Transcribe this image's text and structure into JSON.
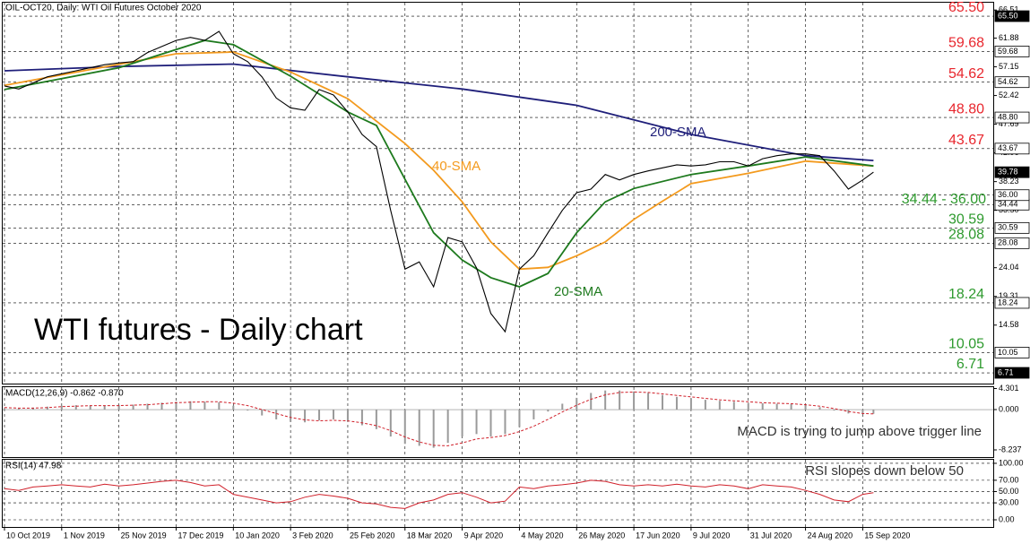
{
  "chart_data": [
    {
      "type": "line",
      "header": "OIL-OCT20, Daily:  WTI Oil Futures October 2020",
      "title": "WTI futures - Daily chart",
      "xlim": [
        -0.5,
        276.5
      ],
      "ylim": [
        4.94,
        67.72
      ],
      "yticks": [
        66.51,
        61.88,
        57.15,
        52.42,
        47.69,
        42.96,
        38.23,
        {
          "value": 33.5,
          "label": "33.50"
        },
        24.04,
        19.31,
        14.58
      ],
      "levels": [
        {
          "value": 65.5,
          "label": "65.50",
          "color": "#e8262d"
        },
        {
          "value": 59.68,
          "color": "#e8262d"
        },
        {
          "value": 54.62,
          "color": "#e8262d"
        },
        {
          "value": 48.8,
          "label": "48.80",
          "color": "#e8262d"
        },
        {
          "value": 43.67,
          "color": "#e8262d"
        },
        {
          "value": 30.59,
          "color": "#2e9a2e"
        },
        {
          "value": 28.08,
          "color": "#2e9a2e"
        },
        {
          "value": 18.24,
          "color": "#2e9a2e"
        },
        {
          "value": 10.05,
          "color": "#2e9a2e"
        },
        {
          "value": 6.71,
          "color": "#2e9a2e"
        }
      ],
      "zone": {
        "label": "34.44 - 36.00",
        "color": "#2e9a2e",
        "low": 34.44,
        "high": {
          "value": 36,
          "label": "36.00"
        }
      },
      "last_price": {
        "value": 39.78,
        "label": "39.78"
      },
      "price": {
        "color": "#000000",
        "x": [
          0,
          4,
          8,
          12,
          16,
          20,
          24,
          28,
          32,
          36,
          40,
          44,
          48,
          52,
          56,
          60,
          64,
          68,
          72,
          76,
          80,
          84,
          88,
          92,
          96,
          100,
          104,
          108,
          112,
          116,
          120,
          124,
          128,
          132,
          136,
          140,
          144,
          148,
          152,
          156,
          160,
          164,
          168,
          172,
          176,
          180,
          184,
          188,
          192,
          196,
          200,
          204,
          208,
          212,
          216,
          220,
          224,
          228,
          232,
          236,
          240,
          243
        ],
        "values": [
          54,
          53.5,
          54.5,
          55.5,
          56,
          56.5,
          57,
          57.5,
          57.8,
          58,
          59.5,
          60.5,
          61.5,
          62,
          61.5,
          63,
          59.3,
          58,
          55.5,
          52,
          50.4,
          50,
          53.4,
          52.5,
          49.7,
          46,
          44,
          33.5,
          23.8,
          25,
          20.9,
          29,
          28.3,
          24,
          16.5,
          13.5,
          23.8,
          26,
          29.8,
          33.5,
          36.4,
          37,
          39.4,
          38.5,
          39.4,
          40,
          40.5,
          41,
          40.8,
          41,
          41.5,
          41.5,
          40.8,
          42,
          42.5,
          42.8,
          42.8,
          42.5,
          40,
          37,
          38.5,
          39.78
        ]
      },
      "series": [
        {
          "name": "200-SMA",
          "color": "#1f1f7a",
          "x": [
            0,
            32,
            64,
            96,
            128,
            160,
            192,
            224,
            243
          ],
          "values": [
            56.5,
            57.2,
            57.6,
            55.5,
            53.5,
            50.8,
            46,
            42.5,
            41.7
          ]
        },
        {
          "name": "40-SMA",
          "color": "#f39a1e",
          "x": [
            0,
            48,
            64,
            80,
            96,
            112,
            120,
            128,
            136,
            144,
            152,
            160,
            168,
            176,
            184,
            192,
            208,
            224,
            243
          ],
          "values": [
            54.1,
            59.3,
            59.6,
            56.3,
            51.9,
            44.5,
            40.1,
            34.9,
            28.3,
            23.8,
            24.1,
            26,
            28.3,
            32,
            35,
            37.9,
            39.6,
            41.6,
            40.8
          ]
        },
        {
          "name": "20-SMA",
          "color": "#1e7a1e",
          "x": [
            0,
            32,
            56,
            64,
            80,
            96,
            104,
            112,
            120,
            128,
            136,
            144,
            152,
            160,
            168,
            176,
            192,
            208,
            224,
            243
          ],
          "values": [
            53.4,
            57,
            61.5,
            60.8,
            55.6,
            49.7,
            47.5,
            38.6,
            29.8,
            25.3,
            22.4,
            20.9,
            23.1,
            29.8,
            34.9,
            37.1,
            39.4,
            40.8,
            42.3,
            40.8
          ]
        }
      ]
    },
    {
      "type": "bar",
      "label": "MACD(12,26,9) -0.862 -0.870",
      "annotation": "MACD is trying to jump above trigger line",
      "xlim": [
        -0.5,
        276.5
      ],
      "ylim": [
        -9.7,
        4.58
      ],
      "yticks": [
        4.301,
        {
          "value": 0,
          "label": "0.000"
        },
        -8.237
      ],
      "color": "#9a9a9a",
      "x": [
        0,
        4,
        8,
        12,
        16,
        20,
        24,
        28,
        32,
        36,
        40,
        44,
        48,
        52,
        56,
        60,
        64,
        68,
        72,
        76,
        80,
        84,
        88,
        92,
        96,
        100,
        104,
        108,
        112,
        116,
        120,
        124,
        128,
        132,
        136,
        140,
        144,
        148,
        152,
        156,
        160,
        164,
        168,
        172,
        176,
        180,
        184,
        188,
        192,
        196,
        200,
        204,
        208,
        212,
        216,
        220,
        224,
        228,
        232,
        236,
        240,
        243
      ],
      "values": [
        0.3,
        0.2,
        0.4,
        0.6,
        0.8,
        0.9,
        0.8,
        0.8,
        0.9,
        1.0,
        1.2,
        1.4,
        1.6,
        1.7,
        1.6,
        1.5,
        0.8,
        -0.2,
        -1.2,
        -2.0,
        -2.5,
        -2.6,
        -2.2,
        -2.0,
        -2.4,
        -3.2,
        -4.0,
        -5.5,
        -7.0,
        -7.4,
        -7.8,
        -6.8,
        -5.5,
        -5.0,
        -5.5,
        -5.0,
        -3.6,
        -2.0,
        -0.4,
        1.2,
        2.4,
        3.4,
        3.9,
        3.9,
        3.7,
        3.4,
        3.0,
        2.6,
        2.3,
        2.0,
        1.8,
        1.6,
        1.4,
        1.3,
        1.2,
        1.1,
        0.9,
        0.5,
        -0.2,
        -0.8,
        -0.95,
        -0.862
      ],
      "signal": {
        "color": "#d0202a",
        "dashed": true,
        "values": [
          0.4,
          0.3,
          0.3,
          0.4,
          0.6,
          0.7,
          0.8,
          0.8,
          0.8,
          0.9,
          1.0,
          1.2,
          1.4,
          1.5,
          1.6,
          1.6,
          1.3,
          0.8,
          0.0,
          -0.8,
          -1.6,
          -2.1,
          -2.3,
          -2.2,
          -2.3,
          -2.7,
          -3.3,
          -4.3,
          -5.6,
          -6.6,
          -7.3,
          -7.4,
          -6.8,
          -6.0,
          -5.7,
          -5.3,
          -4.5,
          -3.4,
          -2.0,
          -0.5,
          0.9,
          2.1,
          3.0,
          3.5,
          3.6,
          3.5,
          3.2,
          2.9,
          2.6,
          2.3,
          2.0,
          1.8,
          1.6,
          1.4,
          1.3,
          1.2,
          1.0,
          0.7,
          0.2,
          -0.4,
          -0.8,
          -0.87
        ]
      }
    },
    {
      "type": "line",
      "label": "RSI(14) 47.98",
      "annotation": "RSI slopes down below 50",
      "xlim": [
        -0.5,
        276.5
      ],
      "ylim": [
        -12.7,
        106.3
      ],
      "yticks": [
        {
          "value": 100,
          "label": "100.00"
        },
        {
          "value": 70,
          "label": "70.00"
        },
        {
          "value": 50,
          "label": "50.00"
        },
        {
          "value": 30,
          "label": "30.00"
        },
        {
          "value": 0,
          "label": "0.00"
        }
      ],
      "color": "#d0202a",
      "x": [
        0,
        4,
        8,
        12,
        16,
        20,
        24,
        28,
        32,
        36,
        40,
        44,
        48,
        52,
        56,
        60,
        64,
        68,
        72,
        76,
        80,
        84,
        88,
        92,
        96,
        100,
        104,
        108,
        112,
        116,
        120,
        124,
        128,
        132,
        136,
        140,
        144,
        148,
        152,
        156,
        160,
        164,
        168,
        172,
        176,
        180,
        184,
        188,
        192,
        196,
        200,
        204,
        208,
        212,
        216,
        220,
        224,
        228,
        232,
        236,
        240,
        243
      ],
      "values": [
        55,
        52,
        58,
        60,
        62,
        60,
        58,
        63,
        60,
        62,
        65,
        68,
        70,
        66,
        60,
        62,
        45,
        40,
        35,
        30,
        32,
        40,
        45,
        42,
        38,
        30,
        28,
        22,
        20,
        30,
        35,
        45,
        48,
        40,
        30,
        33,
        58,
        55,
        60,
        62,
        65,
        70,
        68,
        62,
        60,
        62,
        60,
        63,
        60,
        58,
        62,
        60,
        55,
        62,
        60,
        58,
        52,
        45,
        35,
        32,
        45,
        47.98
      ],
      "xticks": [
        {
          "value": 0,
          "label": "10 Oct 2019"
        },
        {
          "value": 16,
          "label": "1 Nov 2019"
        },
        {
          "value": 32,
          "label": "25 Nov 2019"
        },
        {
          "value": 48,
          "label": "17 Dec 2019"
        },
        {
          "value": 64,
          "label": "10 Jan 2020"
        },
        {
          "value": 80,
          "label": "3 Feb 2020"
        },
        {
          "value": 96,
          "label": "25 Feb 2020"
        },
        {
          "value": 112,
          "label": "18 Mar 2020"
        },
        {
          "value": 128,
          "label": "9 Apr 2020"
        },
        {
          "value": 144,
          "label": "4 May 2020"
        },
        {
          "value": 160,
          "label": "26 May 2020"
        },
        {
          "value": 176,
          "label": "17 Jun 2020"
        },
        {
          "value": 192,
          "label": "9 Jul 2020"
        },
        {
          "value": 208,
          "label": "31 Jul 2020"
        },
        {
          "value": 224,
          "label": "24 Aug 2020"
        },
        {
          "value": 240,
          "label": "15 Sep 2020"
        }
      ]
    }
  ]
}
